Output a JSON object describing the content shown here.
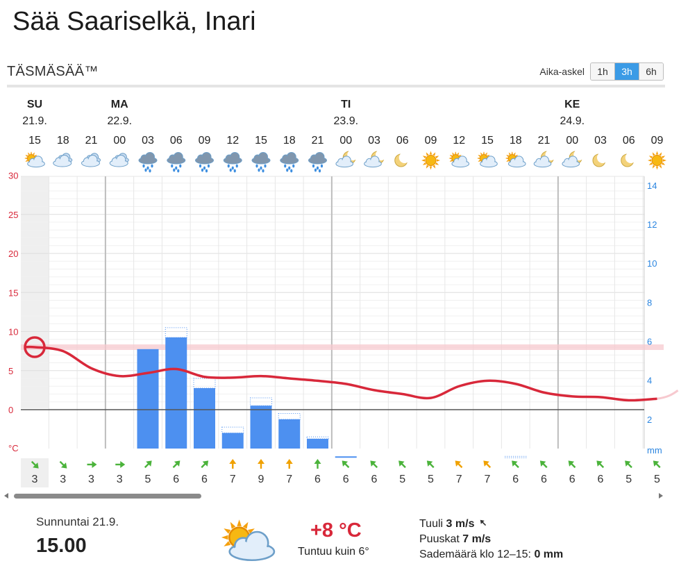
{
  "page": {
    "title": "Sää Saariselkä, Inari"
  },
  "widget": {
    "title": "TÄSMÄSÄÄ™",
    "step_label": "Aika-askel",
    "steps": [
      {
        "label": "1h",
        "active": false
      },
      {
        "label": "3h",
        "active": true
      },
      {
        "label": "6h",
        "active": false
      }
    ]
  },
  "days": [
    {
      "name": "SU",
      "date": "21.9.",
      "col": 0
    },
    {
      "name": "MA",
      "date": "22.9.",
      "col": 3
    },
    {
      "name": "TI",
      "date": "23.9.",
      "col": 11
    },
    {
      "name": "KE",
      "date": "24.9.",
      "col": 19
    }
  ],
  "hours": [
    {
      "hour": "15",
      "icon": "partly-cloudy-day-icon",
      "temp": 8,
      "precip_mm": 0,
      "wind_dir": "nw-arrow-icon",
      "wind_speed": "3"
    },
    {
      "hour": "18",
      "icon": "cloudy-icon",
      "temp": 7.5,
      "precip_mm": 0,
      "wind_dir": "nw-arrow-icon",
      "wind_speed": "3"
    },
    {
      "hour": "21",
      "icon": "cloudy-icon",
      "temp": 5.3,
      "precip_mm": 0,
      "wind_dir": "w-arrow-icon",
      "wind_speed": "3"
    },
    {
      "hour": "00",
      "icon": "cloudy-icon",
      "temp": 4.3,
      "precip_mm": 0,
      "wind_dir": "w-arrow-icon",
      "wind_speed": "3"
    },
    {
      "hour": "03",
      "icon": "rain-cloud-icon",
      "temp": 4.7,
      "precip_mm": 5.6,
      "precip_max": 5.6,
      "wind_dir": "sw-arrow-icon",
      "wind_speed": "5"
    },
    {
      "hour": "06",
      "icon": "rain-cloud-icon",
      "temp": 5.2,
      "precip_mm": 6.2,
      "precip_max": 6.7,
      "wind_dir": "sw-arrow-icon",
      "wind_speed": "6"
    },
    {
      "hour": "09",
      "icon": "rain-cloud-icon",
      "temp": 4.2,
      "precip_mm": 3.6,
      "precip_max": 4.1,
      "wind_dir": "sw-arrow-icon",
      "wind_speed": "6"
    },
    {
      "hour": "12",
      "icon": "rain-cloud-icon",
      "temp": 4.1,
      "precip_mm": 1.3,
      "precip_max": 1.6,
      "wind_dir": "s-arrow-icon",
      "wind_speed": "7"
    },
    {
      "hour": "15",
      "icon": "rain-cloud-icon",
      "temp": 4.3,
      "precip_mm": 2.7,
      "precip_max": 3.1,
      "wind_dir": "s-arrow-icon",
      "wind_speed": "9"
    },
    {
      "hour": "18",
      "icon": "rain-cloud-icon",
      "temp": 4,
      "precip_mm": 2,
      "precip_max": 2.3,
      "wind_dir": "s-arrow-icon",
      "wind_speed": "7"
    },
    {
      "hour": "21",
      "icon": "rain-cloud-icon",
      "temp": 3.7,
      "precip_mm": 1,
      "precip_max": 1.1,
      "wind_dir": "s-arrow-icon",
      "wind_speed": "6"
    },
    {
      "hour": "00",
      "icon": "partly-cloudy-night-icon",
      "temp": 3.3,
      "precip_mm": 0.1,
      "wind_dir": "se-arrow-icon",
      "wind_speed": "6"
    },
    {
      "hour": "03",
      "icon": "partly-cloudy-night-icon",
      "temp": 2.5,
      "precip_mm": 0,
      "wind_dir": "se-arrow-icon",
      "wind_speed": "6"
    },
    {
      "hour": "06",
      "icon": "moon-icon",
      "temp": 2,
      "precip_mm": 0,
      "wind_dir": "se-arrow-icon",
      "wind_speed": "5"
    },
    {
      "hour": "09",
      "icon": "sun-icon",
      "temp": 1.5,
      "precip_mm": 0,
      "wind_dir": "se-arrow-icon",
      "wind_speed": "5"
    },
    {
      "hour": "12",
      "icon": "partly-cloudy-day-icon",
      "temp": 3,
      "precip_mm": 0,
      "wind_dir": "se-arrow-icon",
      "wind_speed": "7"
    },
    {
      "hour": "15",
      "icon": "partly-cloudy-day-icon",
      "temp": 3.7,
      "precip_mm": 0,
      "wind_dir": "se-arrow-icon",
      "wind_speed": "7"
    },
    {
      "hour": "18",
      "icon": "partly-cloudy-day-icon",
      "temp": 3.3,
      "precip_mm": 0,
      "precip_max": 0.1,
      "wind_dir": "se-arrow-icon",
      "wind_speed": "6"
    },
    {
      "hour": "21",
      "icon": "partly-cloudy-night-icon",
      "temp": 2.2,
      "precip_mm": 0,
      "wind_dir": "se-arrow-icon",
      "wind_speed": "6"
    },
    {
      "hour": "00",
      "icon": "partly-cloudy-night-icon",
      "temp": 1.7,
      "precip_mm": 0,
      "wind_dir": "se-arrow-icon",
      "wind_speed": "6"
    },
    {
      "hour": "03",
      "icon": "moon-icon",
      "temp": 1.6,
      "precip_mm": 0,
      "wind_dir": "se-arrow-icon",
      "wind_speed": "6"
    },
    {
      "hour": "06",
      "icon": "moon-icon",
      "temp": 1.2,
      "precip_mm": 0,
      "wind_dir": "se-arrow-icon",
      "wind_speed": "5"
    },
    {
      "hour": "09",
      "icon": "sun-icon",
      "temp": 1.4,
      "precip_mm": 0,
      "wind_dir": "se-arrow-icon",
      "wind_speed": "5"
    }
  ],
  "chart_data": {
    "type": "line",
    "temp_axis": {
      "unit": "°C",
      "ticks": [
        "30",
        "25",
        "20",
        "15",
        "10",
        "5",
        "0"
      ],
      "ylim": [
        -5,
        30
      ]
    },
    "precip_axis": {
      "unit": "mm",
      "ticks": [
        "14",
        "12",
        "10",
        "8",
        "6",
        "4",
        "2"
      ],
      "ylim": [
        0,
        14
      ]
    },
    "reference_temp": 8,
    "selected_index": 0
  },
  "colors": {
    "temp_line": "#d8283a",
    "temp_band": "#f7c9cf",
    "precip_bar": "#4d90f0",
    "grid_day": "#bdbdbd",
    "grid": "#e6e6e6",
    "zero_line": "#555555",
    "wind_green": "#4bb33b",
    "wind_orange": "#f0a100",
    "axis_temp": "#d8283a",
    "axis_precip": "#2a85e0"
  },
  "selected": {
    "date": "Sunnuntai 21.9.",
    "time": "15.00",
    "icon": "partly-cloudy-day-icon",
    "temp": "+8 °C",
    "feels_like": "Tuntuu kuin 6°",
    "wind_label": "Tuuli",
    "wind_value": "3 m/s",
    "wind_icon": "nw-arrow-icon",
    "gust_label": "Puuskat",
    "gust_value": "7 m/s",
    "precip_label": "Sademäärä klo 12–15:",
    "precip_value": "0 mm"
  }
}
